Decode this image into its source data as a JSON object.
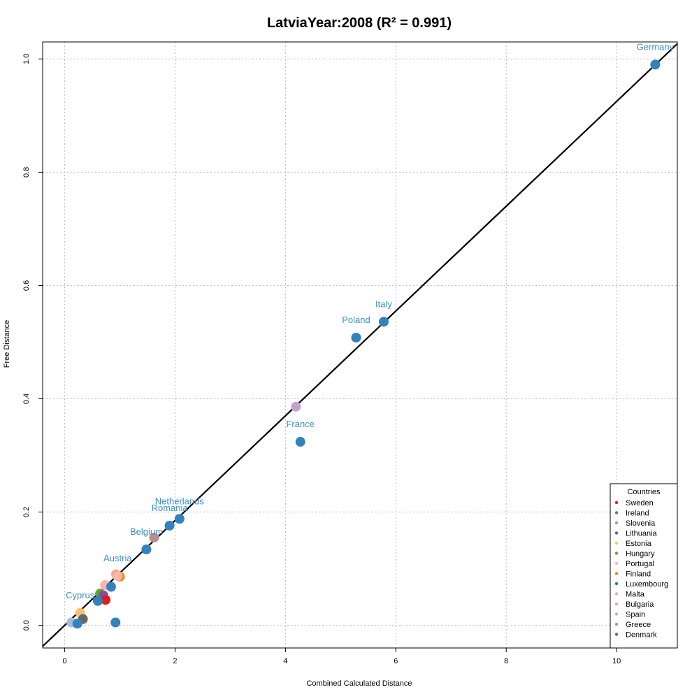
{
  "chart_data": {
    "type": "scatter",
    "title": "LatviaYear:2008 (R² = 0.991)",
    "xlabel": "Combined Calculated Distance",
    "ylabel": "Free Distance",
    "xlim": [
      -0.4,
      11.1
    ],
    "ylim": [
      -0.04,
      1.03
    ],
    "xticks": [
      0,
      2,
      4,
      6,
      8,
      10
    ],
    "yticks": [
      0.0,
      0.2,
      0.4,
      0.6,
      0.8,
      1.0
    ],
    "xtick_labels": [
      "0",
      "2",
      "4",
      "6",
      "8",
      "10"
    ],
    "ytick_labels": [
      "0.0",
      "0.2",
      "0.4",
      "0.6",
      "0.8",
      "1.0"
    ],
    "grid": true,
    "fit_line": {
      "slope": 0.0925,
      "intercept": 0.0
    },
    "label_color": "#3b8fc4",
    "legend": {
      "title": "Countries",
      "position": "bottom-right",
      "entries": [
        {
          "name": "Sweden",
          "color": "#e41a1c"
        },
        {
          "name": "Ireland",
          "color": "#377eb8"
        },
        {
          "name": "Slovenia",
          "color": "#8da0cb"
        },
        {
          "name": "Lithuania",
          "color": "#666666"
        },
        {
          "name": "Estonia",
          "color": "#fdbf6f"
        },
        {
          "name": "Hungary",
          "color": "#66a61e"
        },
        {
          "name": "Portugal",
          "color": "#fbb4ae"
        },
        {
          "name": "Finland",
          "color": "#ff7f00"
        },
        {
          "name": "Luxembourg",
          "color": "#1f78b4"
        },
        {
          "name": "Malta",
          "color": "#cab2d6"
        },
        {
          "name": "Bulgaria",
          "color": "#f4a582"
        },
        {
          "name": "Spain",
          "color": "#a6bddb"
        },
        {
          "name": "Greece",
          "color": "#bc8f8f"
        },
        {
          "name": "Denmark",
          "color": "#7b52ab"
        }
      ]
    },
    "points": [
      {
        "x": 10.7,
        "y": 0.99,
        "color": "#3182bd",
        "label": "Germany"
      },
      {
        "x": 5.78,
        "y": 0.536,
        "color": "#3182bd",
        "label": "Italy"
      },
      {
        "x": 5.28,
        "y": 0.508,
        "color": "#3182bd",
        "label": "Poland"
      },
      {
        "x": 4.19,
        "y": 0.386,
        "color": "#c2a5cf",
        "label": ""
      },
      {
        "x": 4.27,
        "y": 0.324,
        "color": "#3182bd",
        "label": "France"
      },
      {
        "x": 2.08,
        "y": 0.188,
        "color": "#3182bd",
        "label": "Netherlands"
      },
      {
        "x": 1.9,
        "y": 0.176,
        "color": "#3182bd",
        "label": "Romania"
      },
      {
        "x": 1.62,
        "y": 0.155,
        "color": "#bc8f8f",
        "label": ""
      },
      {
        "x": 1.48,
        "y": 0.134,
        "color": "#3182bd",
        "label": "Belgium"
      },
      {
        "x": 0.93,
        "y": 0.09,
        "color": "#f4a582",
        "label": ""
      },
      {
        "x": 1.0,
        "y": 0.086,
        "color": "#ff7f00",
        "label": ""
      },
      {
        "x": 0.96,
        "y": 0.087,
        "color": "#fbb4ae",
        "label": "Austria"
      },
      {
        "x": 0.73,
        "y": 0.071,
        "color": "#fbb4ae",
        "label": ""
      },
      {
        "x": 0.84,
        "y": 0.068,
        "color": "#3182bd",
        "label": ""
      },
      {
        "x": 0.64,
        "y": 0.056,
        "color": "#66a61e",
        "label": ""
      },
      {
        "x": 0.7,
        "y": 0.053,
        "color": "#7b52ab",
        "label": ""
      },
      {
        "x": 0.74,
        "y": 0.045,
        "color": "#e41a1c",
        "label": ""
      },
      {
        "x": 0.6,
        "y": 0.043,
        "color": "#3182bd",
        "label": ""
      },
      {
        "x": 0.28,
        "y": 0.022,
        "color": "#fdbf6f",
        "label": "Cyprus"
      },
      {
        "x": 0.33,
        "y": 0.011,
        "color": "#666666",
        "label": ""
      },
      {
        "x": 0.12,
        "y": 0.005,
        "color": "#a6bddb",
        "label": ""
      },
      {
        "x": 0.23,
        "y": 0.003,
        "color": "#3182bd",
        "label": ""
      },
      {
        "x": 0.92,
        "y": 0.005,
        "color": "#3182bd",
        "label": ""
      }
    ]
  }
}
